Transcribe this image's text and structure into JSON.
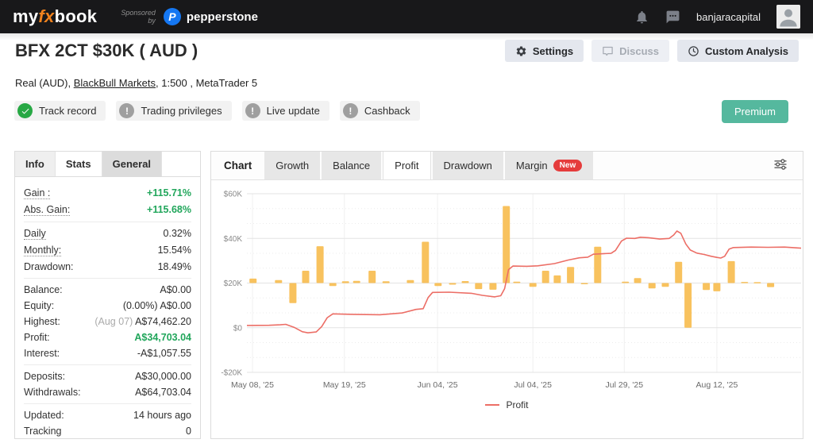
{
  "header": {
    "logo_my": "my",
    "logo_fx": "fx",
    "logo_book": "book",
    "sponsored_line1": "Sponsored",
    "sponsored_line2": "by",
    "pepperstone_mark": "P",
    "pepperstone_name": "pepperstone",
    "icons": [
      "bell-icon",
      "chat-icon"
    ],
    "username": "banjaracapital"
  },
  "title": {
    "heading": "BFX 2CT $30K ( AUD )",
    "sub_prefix": "Real (AUD), ",
    "broker_link": "BlackBull Markets",
    "sub_suffix": ", 1:500 , MetaTrader 5"
  },
  "actions": {
    "settings": "Settings",
    "discuss": "Discuss",
    "custom_analysis": "Custom Analysis"
  },
  "badges": [
    {
      "label": "Track record",
      "status": "ok"
    },
    {
      "label": "Trading privileges",
      "status": "warn"
    },
    {
      "label": "Live update",
      "status": "warn"
    },
    {
      "label": "Cashback",
      "status": "warn"
    }
  ],
  "premium_label": "Premium",
  "stats_panel": {
    "tabs": [
      {
        "label": "Info"
      },
      {
        "label": "Stats",
        "active": true
      },
      {
        "label": "General",
        "last": true
      }
    ],
    "groups": [
      [
        {
          "label": "Gain :",
          "dotted": true,
          "value": "+115.71%",
          "green": true
        },
        {
          "label": "Abs. Gain:",
          "dotted": true,
          "value": "+115.68%",
          "green": true
        }
      ],
      [
        {
          "label": "Daily",
          "dotted": true,
          "value": "0.32%"
        },
        {
          "label": "Monthly:",
          "dotted": true,
          "value": "15.54%"
        },
        {
          "label": "Drawdown:",
          "value": "18.49%"
        }
      ],
      [
        {
          "label": "Balance:",
          "value": "A$0.00"
        },
        {
          "label": "Equity:",
          "prefix": "(0.00%) ",
          "value": "A$0.00"
        },
        {
          "label": "Highest:",
          "prefix": "(Aug 07) ",
          "prefix_muted": true,
          "value": "A$74,462.20"
        },
        {
          "label": "Profit:",
          "value": "A$34,703.04",
          "green": true
        },
        {
          "label": "Interest:",
          "value": "-A$1,057.55"
        }
      ],
      [
        {
          "label": "Deposits:",
          "value": "A$30,000.00"
        },
        {
          "label": "Withdrawals:",
          "value": "A$64,703.04"
        }
      ],
      [
        {
          "label": "Updated:",
          "value": "14 hours ago"
        },
        {
          "label": "Tracking",
          "value": "0"
        }
      ]
    ]
  },
  "chart_panel": {
    "tabs": [
      {
        "label": "Chart",
        "kind": "title"
      },
      {
        "label": "Growth"
      },
      {
        "label": "Balance"
      },
      {
        "label": "Profit",
        "active": true
      },
      {
        "label": "Drawdown"
      },
      {
        "label": "Margin",
        "badge": "New"
      }
    ]
  },
  "chart_data": {
    "type": "mixed-bar-line",
    "title": "Profit",
    "ylim": [
      -20000,
      60000
    ],
    "grid": true,
    "legend_position": "bottom",
    "y_ticks": [
      {
        "v": 60000,
        "label": "$60K"
      },
      {
        "v": 40000,
        "label": "$40K"
      },
      {
        "v": 20000,
        "label": "$20K"
      },
      {
        "v": 0,
        "label": "$0"
      },
      {
        "v": -20000,
        "label": "-$20K"
      }
    ],
    "x_ticks": [
      {
        "pos": 0.01,
        "label": "May 08, '25"
      },
      {
        "pos": 0.176,
        "label": "May 19, '25"
      },
      {
        "pos": 0.344,
        "label": "Jun 04, '25"
      },
      {
        "pos": 0.516,
        "label": "Jul 04, '25"
      },
      {
        "pos": 0.681,
        "label": "Jul 29, '25"
      },
      {
        "pos": 0.848,
        "label": "Aug 12, '25"
      }
    ],
    "bar_baseline": 20000,
    "bar_color": "#f8c25e",
    "bars": [
      {
        "p": 0.011,
        "d": 2000
      },
      {
        "p": 0.057,
        "d": 1300
      },
      {
        "p": 0.083,
        "d": -9000
      },
      {
        "p": 0.106,
        "d": 5500
      },
      {
        "p": 0.132,
        "d": 16500
      },
      {
        "p": 0.155,
        "d": -1300
      },
      {
        "p": 0.178,
        "d": 800
      },
      {
        "p": 0.198,
        "d": 1000
      },
      {
        "p": 0.226,
        "d": 5500
      },
      {
        "p": 0.251,
        "d": 800
      },
      {
        "p": 0.295,
        "d": 1300
      },
      {
        "p": 0.322,
        "d": 18500
      },
      {
        "p": 0.345,
        "d": -1300
      },
      {
        "p": 0.371,
        "d": -700
      },
      {
        "p": 0.394,
        "d": 900
      },
      {
        "p": 0.418,
        "d": -2700
      },
      {
        "p": 0.444,
        "d": -3000
      },
      {
        "p": 0.468,
        "d": 34500
      },
      {
        "p": 0.487,
        "d": 600
      },
      {
        "p": 0.516,
        "d": -1700
      },
      {
        "p": 0.539,
        "d": 5500
      },
      {
        "p": 0.56,
        "d": 3400
      },
      {
        "p": 0.584,
        "d": 7200
      },
      {
        "p": 0.609,
        "d": -500
      },
      {
        "p": 0.633,
        "d": 16300
      },
      {
        "p": 0.683,
        "d": 600
      },
      {
        "p": 0.705,
        "d": 2200
      },
      {
        "p": 0.731,
        "d": -2400
      },
      {
        "p": 0.755,
        "d": -1700
      },
      {
        "p": 0.779,
        "d": 9500
      },
      {
        "p": 0.796,
        "d": -20000
      },
      {
        "p": 0.829,
        "d": -3100
      },
      {
        "p": 0.848,
        "d": -3700
      },
      {
        "p": 0.874,
        "d": 9800
      },
      {
        "p": 0.898,
        "d": 500
      },
      {
        "p": 0.921,
        "d": 400
      },
      {
        "p": 0.945,
        "d": -1800
      }
    ],
    "line_series": {
      "name": "Profit",
      "color": "#ec6e66",
      "points": [
        [
          0,
          1000
        ],
        [
          0.04,
          1100
        ],
        [
          0.06,
          1300
        ],
        [
          0.07,
          1500
        ],
        [
          0.085,
          200
        ],
        [
          0.1,
          -1800
        ],
        [
          0.11,
          -2300
        ],
        [
          0.125,
          -1900
        ],
        [
          0.135,
          500
        ],
        [
          0.145,
          4500
        ],
        [
          0.155,
          6200
        ],
        [
          0.19,
          6000
        ],
        [
          0.24,
          5800
        ],
        [
          0.28,
          6600
        ],
        [
          0.305,
          8200
        ],
        [
          0.318,
          8500
        ],
        [
          0.327,
          13500
        ],
        [
          0.335,
          15800
        ],
        [
          0.365,
          15900
        ],
        [
          0.405,
          15400
        ],
        [
          0.425,
          14500
        ],
        [
          0.447,
          13800
        ],
        [
          0.458,
          14300
        ],
        [
          0.465,
          17500
        ],
        [
          0.472,
          26000
        ],
        [
          0.48,
          27600
        ],
        [
          0.505,
          27500
        ],
        [
          0.525,
          27700
        ],
        [
          0.555,
          28700
        ],
        [
          0.58,
          30300
        ],
        [
          0.6,
          31300
        ],
        [
          0.615,
          31600
        ],
        [
          0.625,
          32900
        ],
        [
          0.645,
          33200
        ],
        [
          0.657,
          33300
        ],
        [
          0.665,
          34600
        ],
        [
          0.676,
          38800
        ],
        [
          0.685,
          40100
        ],
        [
          0.7,
          40000
        ],
        [
          0.71,
          40500
        ],
        [
          0.725,
          40300
        ],
        [
          0.745,
          39700
        ],
        [
          0.762,
          40000
        ],
        [
          0.77,
          41500
        ],
        [
          0.776,
          43300
        ],
        [
          0.783,
          42300
        ],
        [
          0.792,
          37500
        ],
        [
          0.8,
          34800
        ],
        [
          0.812,
          33400
        ],
        [
          0.825,
          32800
        ],
        [
          0.838,
          32000
        ],
        [
          0.848,
          31500
        ],
        [
          0.855,
          31200
        ],
        [
          0.862,
          32000
        ],
        [
          0.87,
          35200
        ],
        [
          0.878,
          35900
        ],
        [
          0.91,
          36100
        ],
        [
          0.94,
          36000
        ],
        [
          0.97,
          36100
        ],
        [
          1,
          35600
        ]
      ]
    },
    "legend": [
      "Profit"
    ]
  }
}
